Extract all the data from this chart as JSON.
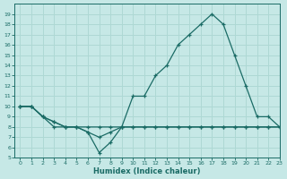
{
  "xlabel": "Humidex (Indice chaleur)",
  "xlim": [
    -0.5,
    23
  ],
  "ylim": [
    5,
    20
  ],
  "yticks": [
    5,
    6,
    7,
    8,
    9,
    10,
    11,
    12,
    13,
    14,
    15,
    16,
    17,
    18,
    19
  ],
  "xticks": [
    0,
    1,
    2,
    3,
    4,
    5,
    6,
    7,
    8,
    9,
    10,
    11,
    12,
    13,
    14,
    15,
    16,
    17,
    18,
    19,
    20,
    21,
    22,
    23
  ],
  "bg_color": "#c6e8e6",
  "grid_color": "#aed8d4",
  "line_color": "#1a6b65",
  "line1_x": [
    0,
    1,
    2,
    3,
    4,
    5,
    6,
    7,
    8,
    9,
    10,
    11,
    12,
    13,
    14,
    15,
    16,
    17,
    18,
    19,
    20,
    21,
    22,
    23
  ],
  "line1_y": [
    10,
    10,
    9,
    8.5,
    8,
    8,
    8,
    8,
    8,
    8,
    8,
    8,
    8,
    8,
    8,
    8,
    8,
    8,
    8,
    8,
    8,
    8,
    8,
    8
  ],
  "line2_x": [
    0,
    1,
    2,
    3,
    4,
    5,
    6,
    7,
    8,
    9,
    10,
    11,
    12,
    13,
    14,
    15,
    16,
    17,
    18,
    19,
    20,
    21,
    22,
    23
  ],
  "line2_y": [
    10,
    10,
    9,
    8.5,
    8,
    8,
    7.5,
    7,
    7.5,
    8,
    11,
    11,
    13,
    14,
    16,
    17,
    18,
    19,
    18,
    15,
    12,
    9,
    9,
    8
  ],
  "line3_x": [
    0,
    1,
    2,
    3,
    4,
    5,
    6,
    7,
    8,
    9,
    10,
    11,
    12,
    13,
    14,
    15,
    16,
    17,
    18,
    19,
    20,
    21,
    22,
    23
  ],
  "line3_y": [
    10,
    10,
    9,
    8,
    8,
    8,
    7.5,
    5.5,
    6.5,
    8,
    8,
    8,
    8,
    8,
    8,
    8,
    8,
    8,
    8,
    8,
    8,
    8,
    8,
    8
  ]
}
